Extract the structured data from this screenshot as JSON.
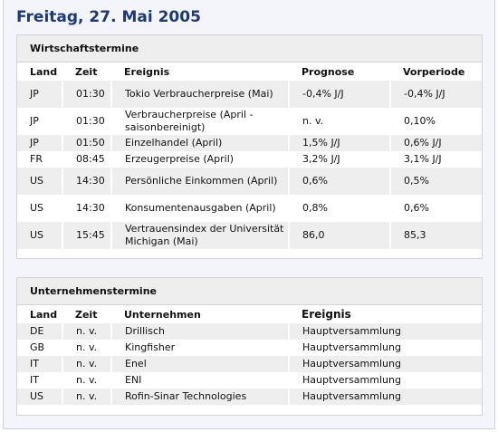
{
  "header": {
    "title": "Freitag, 27. Mai 2005"
  },
  "sections": [
    {
      "title": "Wirtschaftstermine",
      "columns": [
        "Land",
        "Zeit",
        "Ereignis",
        "Prognose",
        "Vorperiode"
      ],
      "rows": [
        [
          "JP",
          "01:30",
          "Tokio Verbraucherpreise (Mai)",
          "-0,4% J/J",
          "-0,4% J/J"
        ],
        [
          "JP",
          "01:30",
          "Verbraucherpreise (April - saisonbereinigt)",
          "n. v.",
          "0,10%"
        ],
        [
          "JP",
          "01:50",
          "Einzelhandel (April)",
          "1,5% J/J",
          "0,6% J/J"
        ],
        [
          "FR",
          "08:45",
          "Erzeugerpreise (April)",
          "3,2% J/J",
          "3,1% J/J"
        ],
        [
          "US",
          "14:30",
          "Persönliche Einkommen (April)",
          "0,6%",
          "0,5%"
        ],
        [
          "US",
          "14:30",
          "Konsumentenausgaben (April)",
          "0,8%",
          "0,6%"
        ],
        [
          "US",
          "15:45",
          "Vertrauensindex der Universität Michigan (Mai)",
          "86,0",
          "85,3"
        ]
      ]
    },
    {
      "title": "Unternehmenstermine",
      "columns": [
        "Land",
        "Zeit",
        "Unternehmen",
        "Ereignis"
      ],
      "rows": [
        [
          "DE",
          "n. v.",
          "Drillisch",
          "Hauptversammlung"
        ],
        [
          "GB",
          "n. v.",
          "Kingfisher",
          "Hauptversammlung"
        ],
        [
          "IT",
          "n. v.",
          "Enel",
          "Hauptversammlung"
        ],
        [
          "IT",
          "n. v.",
          "ENI",
          "Hauptversammlung"
        ],
        [
          "US",
          "n. v.",
          "Rofin-Sinar Technologies",
          "Hauptversammlung"
        ]
      ]
    }
  ]
}
